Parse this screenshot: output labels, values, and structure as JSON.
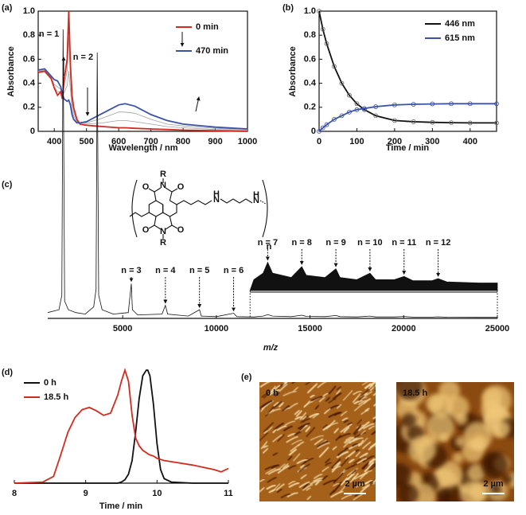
{
  "chart_data": [
    {
      "type": "line",
      "panel_label": "(a)",
      "x_label": "Wavelength / nm",
      "y_label": "Absorbance",
      "x": [
        350,
        370,
        390,
        400,
        410,
        420,
        425,
        430,
        440,
        445,
        450,
        455,
        460,
        470,
        480,
        500,
        550,
        600,
        620,
        650,
        700,
        750,
        800,
        900,
        1000
      ],
      "series": [
        {
          "color": "#a0a0a0",
          "values": [
            0.5,
            0.5,
            0.45,
            0.37,
            0.33,
            0.33,
            0.28,
            0.38,
            0.5,
            0.78,
            0.45,
            0.25,
            0.16,
            0.09,
            0.06,
            0.06,
            0.07,
            0.09,
            0.09,
            0.08,
            0.06,
            0.04,
            0.03,
            0.015,
            0.01
          ]
        },
        {
          "color": "#a0a0a0",
          "values": [
            0.5,
            0.51,
            0.45,
            0.39,
            0.37,
            0.35,
            0.3,
            0.32,
            0.38,
            0.5,
            0.35,
            0.18,
            0.13,
            0.08,
            0.07,
            0.07,
            0.11,
            0.16,
            0.16,
            0.15,
            0.1,
            0.06,
            0.045,
            0.025,
            0.015
          ]
        },
        {
          "name": "0 min",
          "color": "#d42a1e",
          "values": [
            0.49,
            0.5,
            0.44,
            0.36,
            0.3,
            0.33,
            0.27,
            0.42,
            0.6,
            1.0,
            0.55,
            0.3,
            0.2,
            0.1,
            0.06,
            0.05,
            0.04,
            0.03,
            0.03,
            0.025,
            0.02,
            0.015,
            0.01,
            0.005,
            0
          ]
        },
        {
          "name": "470 min",
          "color": "#3a52a8",
          "values": [
            0.51,
            0.52,
            0.46,
            0.43,
            0.42,
            0.37,
            0.31,
            0.27,
            0.25,
            0.26,
            0.22,
            0.14,
            0.1,
            0.07,
            0.07,
            0.08,
            0.15,
            0.22,
            0.23,
            0.21,
            0.14,
            0.09,
            0.06,
            0.035,
            0.02
          ]
        }
      ],
      "xlim": [
        350,
        1000
      ],
      "xticks": [
        400,
        500,
        600,
        700,
        800,
        900,
        1000
      ],
      "ylim": [
        0,
        1
      ],
      "yticks": [
        0,
        0.2,
        0.4,
        0.6,
        0.8,
        {
          "value": 1,
          "label": "1.0"
        }
      ],
      "frame": true,
      "legend": "upper right"
    },
    {
      "type": "line",
      "panel_label": "(b)",
      "x_label": "Time / min",
      "y_label": "Absorbance",
      "x": [
        0,
        10,
        20,
        40,
        60,
        80,
        100,
        120,
        150,
        200,
        250,
        300,
        350,
        400,
        470
      ],
      "series": [
        {
          "name": "446 nm",
          "color": "#111111",
          "values": [
            1,
            0.85,
            0.73,
            0.54,
            0.4,
            0.3,
            0.23,
            0.18,
            0.13,
            0.09,
            0.08,
            0.075,
            0.072,
            0.07,
            0.07
          ]
        },
        {
          "name": "615 nm",
          "color": "#3a52a8",
          "values": [
            0,
            0.03,
            0.055,
            0.1,
            0.13,
            0.16,
            0.18,
            0.19,
            0.205,
            0.22,
            0.225,
            0.228,
            0.23,
            0.23,
            0.23
          ]
        }
      ],
      "xlim": [
        0,
        470
      ],
      "xticks": [
        0,
        100,
        200,
        300,
        400
      ],
      "ylim": [
        0,
        1
      ],
      "yticks": [
        0,
        0.2,
        0.4,
        0.6,
        0.8,
        {
          "value": 1,
          "label": "1.0"
        }
      ],
      "frame": true,
      "markers": true,
      "legend": "upper right"
    },
    {
      "type": "line",
      "panel_label": "(c)",
      "x_label": "m/z",
      "x": [
        1000,
        1600,
        1750,
        1820,
        1900,
        2100,
        2500,
        3000,
        3450,
        3580,
        3640,
        3720,
        3900,
        4500,
        5300,
        5460,
        5520,
        5800,
        7100,
        7280,
        7400,
        8500,
        9100,
        9200,
        10000,
        10920,
        11100,
        12000,
        12500,
        12740,
        13000,
        14000,
        14560,
        14800,
        15800,
        16380,
        16600,
        17500,
        18200,
        18500,
        19500,
        20020,
        20500,
        21500,
        21840,
        22300,
        24000,
        25000
      ],
      "series": [
        {
          "color": "#111111",
          "values": [
            2,
            3,
            8,
            100,
            6,
            3,
            2,
            1.5,
            4,
            10,
            92,
            8,
            3,
            1.5,
            2,
            12,
            3,
            1.2,
            1.5,
            4.5,
            1.5,
            0.8,
            3,
            0.8,
            0.6,
            1.8,
            0.6,
            0.5,
            0.8,
            1.3,
            0.8,
            0.6,
            1.1,
            0.7,
            0.6,
            1.0,
            0.6,
            0.5,
            0.8,
            0.5,
            0.5,
            0.65,
            0.45,
            0.45,
            0.55,
            0.4,
            0.35,
            0.35
          ]
        }
      ],
      "xlim": [
        1000,
        25000
      ],
      "xticks": [
        5000,
        10000,
        15000,
        20000,
        25000
      ],
      "ylim": [
        0,
        100
      ],
      "inset_xstart": 11800,
      "inset_zoom": 7.5,
      "annotations": [
        {
          "text": "n = 1",
          "x": 1820
        },
        {
          "text": "n = 2",
          "x": 3640
        },
        {
          "text": "n = 3",
          "x": 5460
        },
        {
          "text": "n = 4",
          "x": 7280
        },
        {
          "text": "n = 5",
          "x": 9100
        },
        {
          "text": "n = 6",
          "x": 10920
        },
        {
          "text": "n = 7",
          "x": 12740
        },
        {
          "text": "n = 8",
          "x": 14560
        },
        {
          "text": "n = 9",
          "x": 16380
        },
        {
          "text": "n = 10",
          "x": 18200
        },
        {
          "text": "n = 11",
          "x": 20020
        },
        {
          "text": "n = 12",
          "x": 21840
        }
      ],
      "structure_labels": [
        "R",
        "N",
        "O",
        "O",
        "O",
        "O",
        "N",
        "R",
        "H",
        "N",
        "N",
        "H",
        "n"
      ]
    },
    {
      "type": "line",
      "panel_label": "(d)",
      "x_label": "Time / min",
      "x": [
        8,
        8.4,
        8.55,
        8.65,
        8.75,
        8.85,
        8.95,
        9.05,
        9.15,
        9.25,
        9.35,
        9.45,
        9.5,
        9.55,
        9.6,
        9.65,
        9.7,
        9.75,
        9.8,
        9.85,
        9.87,
        9.9,
        9.95,
        10,
        10.05,
        10.1,
        10.2,
        10.5,
        10.8,
        10.9,
        11
      ],
      "series": [
        {
          "name": "0 h",
          "color": "#111111",
          "values": [
            0,
            0,
            0,
            0,
            0,
            0,
            0,
            0,
            0,
            0,
            0,
            0,
            0.01,
            0.03,
            0.08,
            0.2,
            0.45,
            0.75,
            0.95,
            1.0,
            1.0,
            0.95,
            0.7,
            0.35,
            0.12,
            0.04,
            0.01,
            0,
            0,
            0,
            0
          ]
        },
        {
          "name": "18.5 h",
          "color": "#d42a1e",
          "values": [
            0,
            0.01,
            0.06,
            0.25,
            0.45,
            0.58,
            0.65,
            0.67,
            0.64,
            0.6,
            0.62,
            0.78,
            0.9,
            1.0,
            0.9,
            0.6,
            0.4,
            0.33,
            0.29,
            0.27,
            0.26,
            0.25,
            0.24,
            0.22,
            0.21,
            0.2,
            0.19,
            0.16,
            0.12,
            0.1,
            0.13
          ]
        }
      ],
      "xlim": [
        8,
        11
      ],
      "xticks": [
        8,
        9,
        10,
        11
      ],
      "ylim": [
        0,
        1
      ],
      "legend": "upper left"
    }
  ],
  "afm": {
    "panel_label": "(e)",
    "images": [
      {
        "label": "0 h",
        "scale_bar": "2 µm"
      },
      {
        "label": "18.5 h",
        "scale_bar": "2 µm"
      }
    ]
  }
}
